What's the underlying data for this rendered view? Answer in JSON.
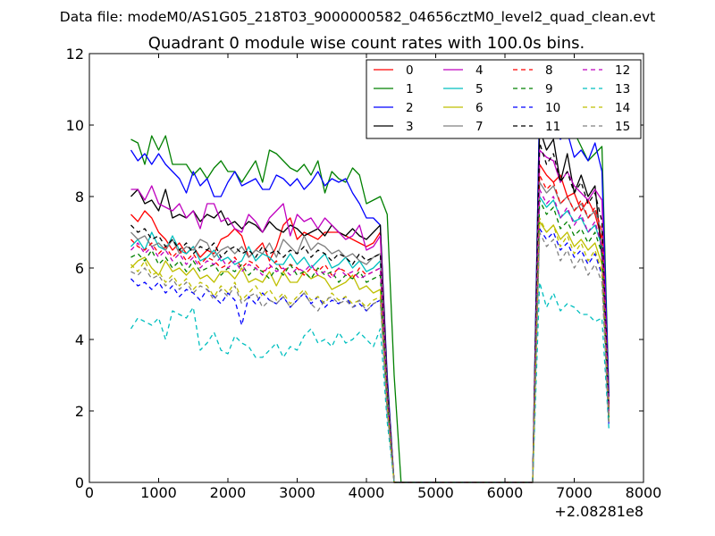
{
  "suptitle": "Data file: modeM0/AS1G05_218T03_9000000582_04656cztM0_level2_quad_clean.evt",
  "chart_data": {
    "type": "line",
    "title": "Quadrant 0 module wise count rates with 100.0s bins.",
    "xlabel": "",
    "ylabel": "",
    "x_offset_label": "+2.08281e8",
    "xlim": [
      0,
      8000
    ],
    "ylim": [
      0,
      12
    ],
    "x_ticks": [
      "0",
      "1000",
      "2000",
      "3000",
      "4000",
      "5000",
      "6000",
      "7000",
      "8000"
    ],
    "y_ticks": [
      "0",
      "2",
      "4",
      "6",
      "8",
      "10",
      "12"
    ],
    "grid": false,
    "legend_position": "top-right",
    "x": [
      600,
      700,
      800,
      900,
      1000,
      1100,
      1200,
      1300,
      1400,
      1500,
      1600,
      1700,
      1800,
      1900,
      2000,
      2100,
      2200,
      2300,
      2400,
      2500,
      2600,
      2700,
      2800,
      2900,
      3000,
      3100,
      3200,
      3300,
      3400,
      3500,
      3600,
      3700,
      3800,
      3900,
      4000,
      4100,
      4200,
      4300,
      4400,
      4500,
      4600,
      4700,
      4800,
      4900,
      5000,
      5100,
      5200,
      5300,
      5400,
      5500,
      5600,
      5700,
      5800,
      5900,
      6000,
      6100,
      6200,
      6300,
      6400,
      6500,
      6600,
      6700,
      6800,
      6900,
      7000,
      7100,
      7200,
      7300,
      7400,
      7500
    ],
    "series": [
      {
        "name": "0",
        "color": "#ff0000",
        "dash": false,
        "values": [
          7.5,
          7.3,
          7.6,
          7.4,
          7.0,
          6.8,
          6.5,
          6.7,
          6.4,
          6.6,
          6.3,
          6.5,
          6.4,
          6.8,
          6.9,
          7.1,
          6.9,
          6.3,
          6.5,
          6.7,
          6.2,
          6.6,
          7.2,
          7.4,
          6.8,
          7.0,
          6.9,
          6.8,
          7.0,
          7.0,
          7.0,
          6.9,
          6.8,
          6.7,
          6.6,
          6.7,
          7.0,
          2.5,
          0,
          0,
          0,
          0,
          0,
          0,
          0,
          0,
          0,
          0,
          0,
          0,
          0,
          0,
          0,
          0,
          0,
          0,
          0,
          0,
          0,
          8.9,
          8.6,
          8.4,
          8.6,
          8.0,
          8.1,
          7.6,
          7.9,
          7.5,
          6.8,
          2.2
        ]
      },
      {
        "name": "1",
        "color": "#008000",
        "dash": false,
        "values": [
          9.6,
          9.5,
          8.9,
          9.7,
          9.3,
          9.7,
          8.9,
          8.9,
          8.9,
          8.6,
          8.8,
          8.5,
          8.8,
          9.0,
          8.7,
          8.7,
          8.4,
          8.7,
          9.0,
          8.4,
          9.3,
          9.2,
          9.0,
          8.8,
          8.7,
          8.9,
          8.6,
          9.0,
          8.1,
          8.7,
          8.5,
          8.4,
          8.8,
          8.6,
          7.8,
          7.9,
          8.0,
          7.5,
          3.0,
          0,
          0,
          0,
          0,
          0,
          0,
          0,
          0,
          0,
          0,
          0,
          0,
          0,
          0,
          0,
          0,
          0,
          0,
          0,
          0,
          10.5,
          10.2,
          10.6,
          9.9,
          9.7,
          9.8,
          9.4,
          9.0,
          9.2,
          9.4,
          2.5
        ]
      },
      {
        "name": "2",
        "color": "#0000ff",
        "dash": false,
        "values": [
          9.3,
          9.0,
          9.2,
          8.9,
          9.2,
          8.9,
          8.7,
          8.5,
          8.1,
          8.7,
          8.3,
          8.5,
          8.0,
          8.0,
          8.4,
          8.7,
          8.3,
          8.4,
          8.5,
          8.2,
          8.2,
          8.6,
          8.5,
          8.3,
          8.5,
          8.2,
          8.4,
          8.7,
          8.3,
          8.5,
          8.4,
          8.5,
          8.1,
          7.8,
          7.4,
          7.4,
          7.2,
          3.0,
          0,
          0,
          0,
          0,
          0,
          0,
          0,
          0,
          0,
          0,
          0,
          0,
          0,
          0,
          0,
          0,
          0,
          0,
          0,
          0,
          0,
          10.6,
          10.4,
          9.9,
          9.6,
          9.8,
          9.1,
          9.3,
          9.0,
          9.5,
          8.7,
          2.4
        ]
      },
      {
        "name": "3",
        "color": "#000000",
        "dash": false,
        "values": [
          8.0,
          8.2,
          7.8,
          7.9,
          7.6,
          8.2,
          7.4,
          7.5,
          7.4,
          7.6,
          7.3,
          7.5,
          7.4,
          7.6,
          7.2,
          7.3,
          7.1,
          7.3,
          7.2,
          7.0,
          7.3,
          7.1,
          7.0,
          7.2,
          7.1,
          6.9,
          7.0,
          7.1,
          6.9,
          7.2,
          7.0,
          6.9,
          7.1,
          6.9,
          6.8,
          7.0,
          7.2,
          2.8,
          0,
          0,
          0,
          0,
          0,
          0,
          0,
          0,
          0,
          0,
          0,
          0,
          0,
          0,
          0,
          0,
          0,
          0,
          0,
          0,
          0,
          9.9,
          9.3,
          9.6,
          8.4,
          9.2,
          8.1,
          8.6,
          8.0,
          8.3,
          6.3,
          2.0
        ]
      },
      {
        "name": "4",
        "color": "#bf00bf",
        "dash": false,
        "values": [
          8.2,
          8.2,
          7.9,
          8.3,
          7.8,
          7.7,
          7.6,
          7.8,
          7.4,
          7.6,
          7.1,
          7.8,
          7.8,
          7.3,
          7.4,
          7.1,
          7.0,
          7.5,
          7.3,
          7.0,
          7.4,
          7.6,
          7.8,
          6.9,
          7.5,
          7.3,
          7.4,
          7.1,
          7.4,
          7.2,
          7.0,
          6.8,
          6.9,
          7.2,
          6.5,
          6.6,
          6.9,
          2.6,
          0,
          0,
          0,
          0,
          0,
          0,
          0,
          0,
          0,
          0,
          0,
          0,
          0,
          0,
          0,
          0,
          0,
          0,
          0,
          0,
          0,
          9.3,
          9.1,
          9.0,
          8.4,
          8.7,
          8.3,
          8.1,
          7.9,
          8.2,
          7.9,
          2.1
        ]
      },
      {
        "name": "5",
        "color": "#00bfbf",
        "dash": false,
        "values": [
          6.6,
          6.8,
          6.5,
          7.0,
          6.6,
          6.5,
          6.9,
          6.5,
          6.4,
          6.6,
          6.2,
          6.3,
          6.5,
          6.2,
          6.3,
          6.1,
          6.2,
          6.6,
          6.2,
          6.4,
          6.3,
          6.1,
          6.1,
          6.4,
          6.1,
          6.3,
          6.0,
          6.2,
          6.4,
          6.0,
          6.1,
          6.3,
          6.0,
          6.2,
          5.9,
          6.0,
          6.2,
          2.4,
          0,
          0,
          0,
          0,
          0,
          0,
          0,
          0,
          0,
          0,
          0,
          0,
          0,
          0,
          0,
          0,
          0,
          0,
          0,
          0,
          0,
          8.0,
          7.7,
          7.9,
          7.4,
          7.6,
          7.3,
          7.4,
          7.0,
          7.2,
          6.6,
          1.9
        ]
      },
      {
        "name": "6",
        "color": "#bfbf00",
        "dash": false,
        "values": [
          6.0,
          6.2,
          6.3,
          6.0,
          5.8,
          6.2,
          5.9,
          6.0,
          5.8,
          6.0,
          5.7,
          5.8,
          5.6,
          5.9,
          5.9,
          5.7,
          6.0,
          5.6,
          5.7,
          5.6,
          5.9,
          5.5,
          5.9,
          5.6,
          5.6,
          5.9,
          5.7,
          5.8,
          5.7,
          5.4,
          5.5,
          5.6,
          5.8,
          5.4,
          5.5,
          5.3,
          5.4,
          2.2,
          0,
          0,
          0,
          0,
          0,
          0,
          0,
          0,
          0,
          0,
          0,
          0,
          0,
          0,
          0,
          0,
          0,
          0,
          0,
          0,
          0,
          7.3,
          7.0,
          7.2,
          6.8,
          7.0,
          6.6,
          6.8,
          6.5,
          6.7,
          6.1,
          1.7
        ]
      },
      {
        "name": "7",
        "color": "#808080",
        "dash": false,
        "values": [
          7.0,
          6.8,
          6.9,
          6.6,
          6.7,
          6.5,
          6.8,
          6.4,
          6.6,
          6.5,
          6.8,
          6.7,
          6.3,
          6.5,
          6.6,
          6.4,
          6.6,
          6.3,
          6.5,
          6.4,
          6.7,
          6.3,
          6.8,
          6.6,
          6.4,
          6.9,
          6.5,
          6.7,
          6.6,
          6.4,
          6.5,
          6.3,
          6.4,
          6.2,
          6.1,
          6.3,
          6.4,
          2.6,
          0,
          0,
          0,
          0,
          0,
          0,
          0,
          0,
          0,
          0,
          0,
          0,
          0,
          0,
          0,
          0,
          0,
          0,
          0,
          0,
          0,
          8.4,
          8.1,
          8.3,
          7.8,
          8.0,
          7.6,
          7.8,
          7.4,
          7.6,
          7.0,
          2.0
        ]
      },
      {
        "name": "8",
        "color": "#ff0000",
        "dash": true,
        "values": [
          6.8,
          6.6,
          6.5,
          6.7,
          6.4,
          6.6,
          6.3,
          6.5,
          6.2,
          6.4,
          6.1,
          6.3,
          6.2,
          6.0,
          6.1,
          6.3,
          6.0,
          6.2,
          6.1,
          5.9,
          6.0,
          6.2,
          5.9,
          6.1,
          6.0,
          5.8,
          6.0,
          5.9,
          6.1,
          5.8,
          6.0,
          5.9,
          5.7,
          6.0,
          5.8,
          5.9,
          6.0,
          2.4,
          0,
          0,
          0,
          0,
          0,
          0,
          0,
          0,
          0,
          0,
          0,
          0,
          0,
          0,
          0,
          0,
          0,
          0,
          0,
          0,
          0,
          8.6,
          8.2,
          8.4,
          7.8,
          8.0,
          7.6,
          7.9,
          7.4,
          7.7,
          7.0,
          2.0
        ]
      },
      {
        "name": "9",
        "color": "#008000",
        "dash": true,
        "values": [
          6.3,
          6.4,
          6.2,
          6.5,
          6.1,
          6.3,
          6.0,
          6.2,
          5.9,
          6.2,
          5.9,
          6.0,
          6.1,
          5.8,
          6.0,
          5.9,
          6.1,
          5.8,
          6.0,
          5.9,
          5.7,
          6.0,
          5.8,
          6.1,
          5.8,
          5.9,
          5.7,
          6.0,
          5.8,
          5.9,
          5.6,
          5.8,
          5.7,
          5.9,
          5.6,
          5.7,
          5.8,
          2.3,
          0,
          0,
          0,
          0,
          0,
          0,
          0,
          0,
          0,
          0,
          0,
          0,
          0,
          0,
          0,
          0,
          0,
          0,
          0,
          0,
          0,
          7.9,
          7.5,
          7.7,
          7.1,
          7.3,
          6.9,
          7.1,
          6.7,
          7.0,
          6.4,
          1.8
        ]
      },
      {
        "name": "10",
        "color": "#0000ff",
        "dash": true,
        "values": [
          5.7,
          5.5,
          5.6,
          5.4,
          5.6,
          5.3,
          5.5,
          5.2,
          5.4,
          5.3,
          5.1,
          5.4,
          5.2,
          5.0,
          5.3,
          5.1,
          4.4,
          5.2,
          5.0,
          5.3,
          5.1,
          5.0,
          5.2,
          4.9,
          5.1,
          5.3,
          5.0,
          5.2,
          4.9,
          5.1,
          5.0,
          5.2,
          4.9,
          5.0,
          4.8,
          5.0,
          5.1,
          2.0,
          0,
          0,
          0,
          0,
          0,
          0,
          0,
          0,
          0,
          0,
          0,
          0,
          0,
          0,
          0,
          0,
          0,
          0,
          0,
          0,
          0,
          7.1,
          6.8,
          7.0,
          6.5,
          6.7,
          6.3,
          6.5,
          6.1,
          6.4,
          5.8,
          1.6
        ]
      },
      {
        "name": "11",
        "color": "#000000",
        "dash": true,
        "values": [
          7.2,
          7.0,
          7.1,
          6.8,
          6.9,
          6.6,
          6.8,
          6.5,
          6.7,
          6.4,
          6.6,
          6.5,
          6.7,
          6.3,
          6.5,
          6.6,
          6.4,
          6.5,
          6.3,
          6.6,
          6.4,
          6.5,
          6.3,
          6.5,
          6.4,
          6.6,
          6.3,
          6.5,
          6.4,
          6.2,
          6.4,
          6.3,
          6.1,
          6.4,
          6.2,
          6.3,
          6.4,
          2.5,
          0,
          0,
          0,
          0,
          0,
          0,
          0,
          0,
          0,
          0,
          0,
          0,
          0,
          0,
          0,
          0,
          0,
          0,
          0,
          0,
          0,
          9.5,
          8.9,
          9.2,
          8.4,
          8.7,
          8.1,
          8.4,
          7.8,
          8.1,
          7.3,
          2.1
        ]
      },
      {
        "name": "12",
        "color": "#bf00bf",
        "dash": true,
        "values": [
          6.5,
          6.7,
          6.4,
          6.6,
          6.3,
          6.5,
          6.2,
          6.4,
          6.1,
          6.3,
          6.0,
          6.2,
          6.1,
          6.3,
          6.0,
          6.2,
          5.9,
          6.1,
          6.0,
          5.8,
          6.1,
          5.9,
          6.0,
          5.8,
          6.0,
          5.9,
          6.1,
          5.8,
          5.9,
          5.7,
          6.0,
          5.8,
          5.9,
          5.7,
          5.8,
          5.9,
          6.0,
          2.3,
          0,
          0,
          0,
          0,
          0,
          0,
          0,
          0,
          0,
          0,
          0,
          0,
          0,
          0,
          0,
          0,
          0,
          0,
          0,
          0,
          0,
          8.2,
          7.8,
          8.0,
          7.4,
          7.7,
          7.2,
          7.5,
          7.0,
          7.3,
          6.6,
          1.9
        ]
      },
      {
        "name": "13",
        "color": "#00bfbf",
        "dash": true,
        "values": [
          4.3,
          4.6,
          4.5,
          4.4,
          4.6,
          4.0,
          4.8,
          4.7,
          4.6,
          4.9,
          3.7,
          3.9,
          4.2,
          3.7,
          3.6,
          4.1,
          3.9,
          3.8,
          3.5,
          3.5,
          3.7,
          3.9,
          3.5,
          3.8,
          3.7,
          4.1,
          4.3,
          3.9,
          4.0,
          3.8,
          4.2,
          3.9,
          4.0,
          4.2,
          4.0,
          3.8,
          4.3,
          1.7,
          0,
          0,
          0,
          0,
          0,
          0,
          0,
          0,
          0,
          0,
          0,
          0,
          0,
          0,
          0,
          0,
          0,
          0,
          0,
          0,
          0,
          5.6,
          4.9,
          5.3,
          4.8,
          5.0,
          4.9,
          4.7,
          4.7,
          4.5,
          4.6,
          1.5
        ]
      },
      {
        "name": "14",
        "color": "#bfbf00",
        "dash": true,
        "values": [
          6.1,
          5.9,
          6.2,
          5.8,
          5.9,
          5.6,
          5.8,
          5.5,
          5.7,
          5.4,
          5.6,
          5.5,
          5.2,
          5.5,
          5.3,
          5.6,
          5.1,
          5.3,
          5.5,
          5.2,
          5.4,
          5.1,
          5.3,
          5.0,
          5.2,
          5.4,
          5.1,
          5.2,
          5.0,
          5.3,
          5.1,
          5.2,
          5.0,
          5.1,
          4.9,
          5.1,
          5.2,
          2.1,
          0,
          0,
          0,
          0,
          0,
          0,
          0,
          0,
          0,
          0,
          0,
          0,
          0,
          0,
          0,
          0,
          0,
          0,
          0,
          0,
          0,
          7.4,
          7.0,
          7.2,
          6.6,
          6.9,
          6.4,
          6.7,
          6.2,
          6.5,
          5.9,
          1.7
        ]
      },
      {
        "name": "15",
        "color": "#808080",
        "dash": true,
        "values": [
          5.9,
          5.8,
          6.0,
          5.7,
          5.8,
          5.5,
          5.7,
          5.4,
          5.6,
          5.3,
          5.5,
          5.4,
          5.1,
          5.4,
          5.2,
          5.5,
          5.0,
          5.2,
          5.3,
          4.9,
          5.1,
          5.0,
          5.2,
          4.9,
          5.1,
          5.3,
          5.0,
          4.8,
          5.1,
          5.2,
          5.0,
          5.1,
          4.9,
          5.1,
          4.8,
          5.0,
          5.1,
          2.0,
          0,
          0,
          0,
          0,
          0,
          0,
          0,
          0,
          0,
          0,
          0,
          0,
          0,
          0,
          0,
          0,
          0,
          0,
          0,
          0,
          0,
          7.0,
          6.6,
          6.8,
          6.2,
          6.5,
          6.0,
          6.3,
          5.8,
          6.1,
          5.6,
          1.6
        ]
      }
    ]
  }
}
